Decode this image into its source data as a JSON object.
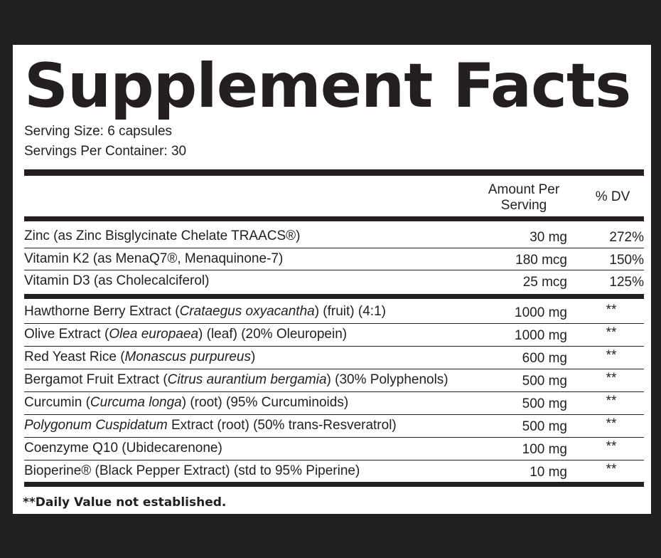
{
  "title": "Supplement Facts",
  "serving_size": "Serving Size: 6 capsules",
  "servings_per_container": "Servings Per Container: 30",
  "headers": {
    "amount_line1": "Amount Per",
    "amount_line2": "Serving",
    "dv": "% DV"
  },
  "vitamins": [
    {
      "name": "Zinc (as Zinc Bisglycinate Chelate TRAACS®)",
      "amount": "30 mg",
      "dv": "272%"
    },
    {
      "name": "Vitamin K2 (as MenaQ7®, Menaquinone-7)",
      "amount": "180 mcg",
      "dv": "150%"
    },
    {
      "name": "Vitamin D3 (as Cholecalciferol)",
      "amount": "25 mcg",
      "dv": "125%"
    }
  ],
  "extracts": [
    {
      "pre": "Hawthorne Berry Extract (",
      "latin": "Crataegus oxyacantha",
      "post": ") (fruit) (4:1)",
      "amount": "1000 mg",
      "dv": "**"
    },
    {
      "pre": "Olive Extract (",
      "latin": "Olea europaea",
      "post": ") (leaf) (20% Oleuropein)",
      "amount": "1000 mg",
      "dv": "**"
    },
    {
      "pre": "Red Yeast Rice (",
      "latin": "Monascus purpureus",
      "post": ")",
      "amount": "600 mg",
      "dv": "**"
    },
    {
      "pre": "Bergamot Fruit Extract (",
      "latin": "Citrus aurantium bergamia",
      "post": ") (30% Polyphenols)",
      "amount": "500 mg",
      "dv": "**"
    },
    {
      "pre": "Curcumin (",
      "latin": "Curcuma longa",
      "post": ") (root) (95% Curcuminoids)",
      "amount": "500 mg",
      "dv": "**"
    },
    {
      "pre": "",
      "latin": "Polygonum Cuspidatum",
      "post": " Extract (root) (50% trans-Resveratrol)",
      "amount": "500 mg",
      "dv": "**"
    },
    {
      "pre": "Coenzyme Q10 (Ubidecarenone)",
      "latin": "",
      "post": "",
      "amount": "100 mg",
      "dv": "**"
    },
    {
      "pre": "Bioperine® (Black Pepper Extract) (std to 95% Piperine)",
      "latin": "",
      "post": "",
      "amount": "10 mg",
      "dv": "**"
    }
  ],
  "footnote": "**Daily Value not established."
}
